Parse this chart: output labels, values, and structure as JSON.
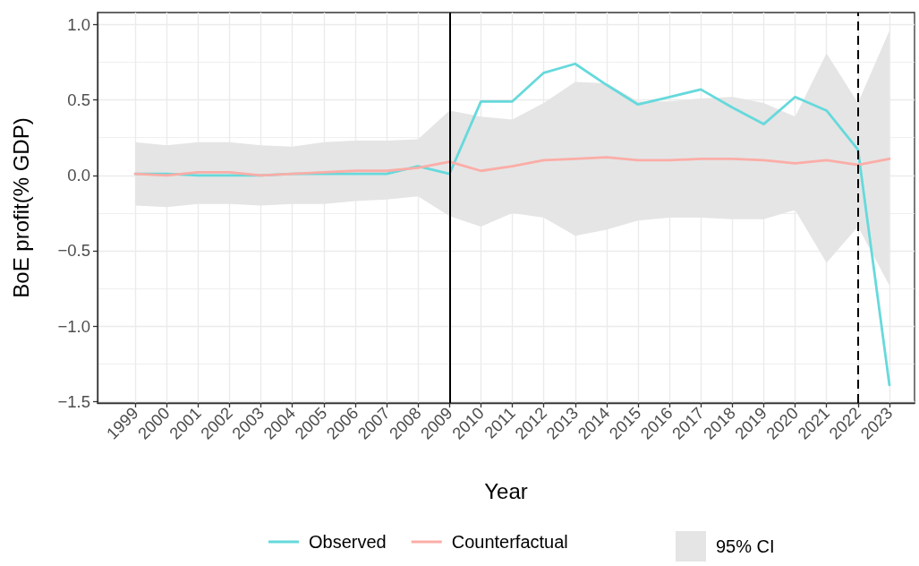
{
  "chart_data": {
    "type": "line",
    "xlabel": "Year",
    "ylabel": "BoE profit(% GDP)",
    "x": [
      1999,
      2000,
      2001,
      2002,
      2003,
      2004,
      2005,
      2006,
      2007,
      2008,
      2009,
      2010,
      2011,
      2012,
      2013,
      2014,
      2015,
      2016,
      2017,
      2018,
      2019,
      2020,
      2021,
      2022,
      2023
    ],
    "series": [
      {
        "name": "Observed",
        "color": "#66d9dc",
        "values": [
          0.01,
          0.01,
          0.0,
          0.0,
          0.0,
          0.01,
          0.01,
          0.01,
          0.01,
          0.06,
          0.01,
          0.49,
          0.49,
          0.68,
          0.74,
          0.6,
          0.47,
          0.52,
          0.57,
          0.45,
          0.34,
          0.52,
          0.43,
          0.17,
          -1.39
        ]
      },
      {
        "name": "Counterfactual",
        "color": "#fbada7",
        "values": [
          0.01,
          0.0,
          0.02,
          0.02,
          0.0,
          0.01,
          0.02,
          0.03,
          0.03,
          0.05,
          0.09,
          0.03,
          0.06,
          0.1,
          0.11,
          0.12,
          0.1,
          0.1,
          0.11,
          0.11,
          0.1,
          0.08,
          0.1,
          0.07,
          0.11
        ]
      },
      {
        "name": "95% CI",
        "type": "area",
        "color": "#e5e5e5",
        "values": [
          null,
          null,
          null,
          null,
          null,
          null,
          null,
          null,
          null,
          null,
          null,
          null,
          null,
          null,
          null,
          null,
          null,
          null,
          null,
          null,
          null,
          null,
          null,
          null,
          null
        ],
        "upper": [
          0.22,
          0.2,
          0.22,
          0.22,
          0.2,
          0.19,
          0.22,
          0.23,
          0.23,
          0.24,
          0.43,
          0.39,
          0.37,
          0.48,
          0.62,
          0.61,
          0.49,
          0.49,
          0.51,
          0.52,
          0.48,
          0.39,
          0.81,
          0.48,
          0.96
        ],
        "lower": [
          -0.2,
          -0.21,
          -0.19,
          -0.19,
          -0.2,
          -0.19,
          -0.19,
          -0.17,
          -0.16,
          -0.14,
          -0.27,
          -0.34,
          -0.25,
          -0.28,
          -0.4,
          -0.36,
          -0.3,
          -0.28,
          -0.28,
          -0.29,
          -0.29,
          -0.23,
          -0.58,
          -0.34,
          -0.73
        ]
      }
    ],
    "xlim": [
      1997.8,
      2023.8
    ],
    "xticks": [
      1999,
      2000,
      2001,
      2002,
      2003,
      2004,
      2005,
      2006,
      2007,
      2008,
      2009,
      2010,
      2011,
      2012,
      2013,
      2014,
      2015,
      2016,
      2017,
      2018,
      2019,
      2020,
      2021,
      2022,
      2023
    ],
    "ylim": [
      -1.51,
      1.08
    ],
    "yticks": [
      {
        "value": -1.5,
        "label": "−1.5"
      },
      {
        "value": -1.25,
        "label": null
      },
      {
        "value": -1,
        "label": "−1.0"
      },
      {
        "value": -0.75,
        "label": null
      },
      {
        "value": -0.5,
        "label": "−0.5"
      },
      {
        "value": -0.25,
        "label": null
      },
      {
        "value": 0,
        "label": "0.0"
      },
      {
        "value": 0.25,
        "label": null
      },
      0.5,
      {
        "value": 0.75,
        "label": null
      },
      {
        "value": 1,
        "label": "1.0"
      }
    ],
    "ref_lines": [
      {
        "axis": "x",
        "value": 2009,
        "color": "#000000",
        "line_style": "solid"
      },
      {
        "axis": "x",
        "value": 2022,
        "color": "#000000",
        "line_style": "dashed"
      }
    ],
    "grid": true,
    "legend": "bottom",
    "marker": "none"
  }
}
